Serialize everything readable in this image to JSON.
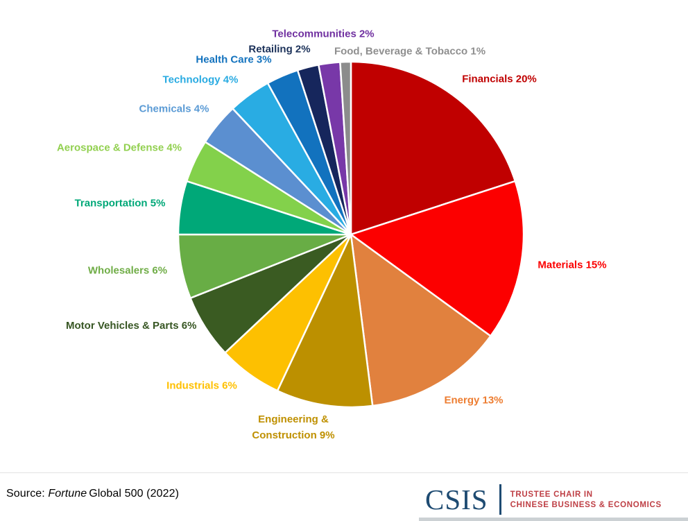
{
  "chart_data": {
    "type": "pie",
    "start_angle_deg": 0,
    "direction": "clockwise",
    "label_format": "{label} {value}%",
    "slices": [
      {
        "label": "Financials",
        "value": 20,
        "color": "#C00000",
        "label_color": "#C00000"
      },
      {
        "label": "Materials",
        "value": 15,
        "color": "#FC0000",
        "label_color": "#FB0000"
      },
      {
        "label": "Energy",
        "value": 13,
        "color": "#E1813E",
        "label_color": "#ED7D31"
      },
      {
        "label": "Engineering & Construction",
        "value": 9,
        "color": "#BC9000",
        "label_color": "#BF9000"
      },
      {
        "label": "Industrials",
        "value": 6,
        "color": "#FDC001",
        "label_color": "#FFC000"
      },
      {
        "label": "Motor Vehicles & Parts",
        "value": 6,
        "color": "#3A5B22",
        "label_color": "#375623"
      },
      {
        "label": "Wholesalers",
        "value": 6,
        "color": "#68AD45",
        "label_color": "#70AD47"
      },
      {
        "label": "Transportation",
        "value": 5,
        "color": "#00A878",
        "label_color": "#00A878"
      },
      {
        "label": "Aerospace & Defense",
        "value": 4,
        "color": "#83D14B",
        "label_color": "#92D050"
      },
      {
        "label": "Chemicals",
        "value": 4,
        "color": "#5B8FD0",
        "label_color": "#5B9BD5"
      },
      {
        "label": "Technology",
        "value": 4,
        "color": "#29ACE3",
        "label_color": "#29ABE2"
      },
      {
        "label": "Health Care",
        "value": 3,
        "color": "#1272BE",
        "label_color": "#1272BE"
      },
      {
        "label": "Retailing",
        "value": 2,
        "color": "#16265C",
        "label_color": "#1B3159"
      },
      {
        "label": "Telecommunities",
        "value": 2,
        "color": "#7838A8",
        "label_color": "#7030A0"
      },
      {
        "label": "Food, Beverage & Tobacco",
        "value": 1,
        "color": "#8C8C8C",
        "label_color": "#8F8F8F"
      }
    ]
  },
  "footer": {
    "source_prefix": "Source: ",
    "source_italic": "Fortune",
    "source_suffix": "Global 500 (2022)"
  },
  "logo": {
    "wordmark": "CSIS",
    "tagline_line1": "TRUSTEE CHAIR IN",
    "tagline_line2": "CHINESE BUSINESS & ECONOMICS",
    "navy": "#1E4B72",
    "red": "#BE3E44"
  }
}
